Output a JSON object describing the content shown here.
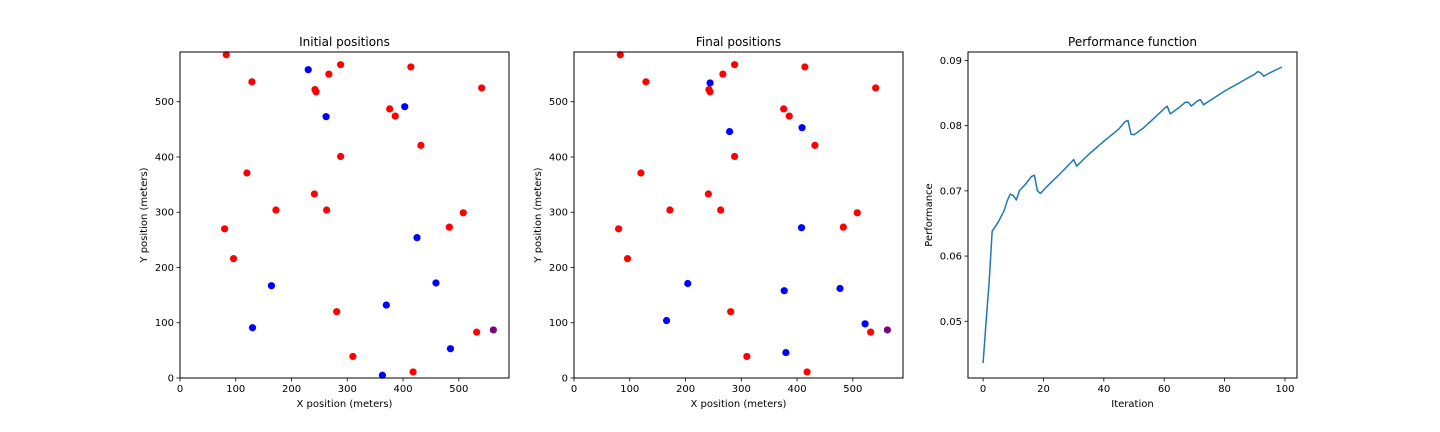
{
  "chart_data": [
    {
      "type": "scatter",
      "title": "Initial positions",
      "xlabel": "X position (meters)",
      "ylabel": "Y position (meters)",
      "xlim": [
        0,
        590
      ],
      "ylim": [
        0,
        590
      ],
      "xticks": [
        0,
        100,
        200,
        300,
        400,
        500
      ],
      "yticks": [
        0,
        100,
        200,
        300,
        400,
        500
      ],
      "grid": false,
      "series": [
        {
          "color": "#ff0000",
          "points": [
            [
              83,
              585
            ],
            [
              129,
              536
            ],
            [
              288,
              567
            ],
            [
              414,
              563
            ],
            [
              541,
              525
            ],
            [
              242,
              522
            ],
            [
              244,
              518
            ],
            [
              267,
              550
            ],
            [
              376,
              487
            ],
            [
              386,
              474
            ],
            [
              432,
              421
            ],
            [
              288,
              401
            ],
            [
              120,
              371
            ],
            [
              241,
              333
            ],
            [
              172,
              304
            ],
            [
              263,
              304
            ],
            [
              508,
              299
            ],
            [
              483,
              273
            ],
            [
              80,
              270
            ],
            [
              96,
              216
            ],
            [
              281,
              120
            ],
            [
              532,
              83
            ],
            [
              310,
              39
            ],
            [
              418,
              11
            ]
          ]
        },
        {
          "color": "#0000ff",
          "points": [
            [
              230,
              558
            ],
            [
              403,
              491
            ],
            [
              262,
              473
            ],
            [
              425,
              254
            ],
            [
              459,
              172
            ],
            [
              164,
              167
            ],
            [
              370,
              132
            ],
            [
              130,
              91
            ],
            [
              485,
              53
            ],
            [
              363,
              5
            ]
          ]
        },
        {
          "color": "#800080",
          "points": [
            [
              562,
              87
            ]
          ]
        }
      ]
    },
    {
      "type": "scatter",
      "title": "Final positions",
      "xlabel": "X position (meters)",
      "ylabel": "Y position (meters)",
      "xlim": [
        0,
        590
      ],
      "ylim": [
        0,
        590
      ],
      "xticks": [
        0,
        100,
        200,
        300,
        400,
        500
      ],
      "yticks": [
        0,
        100,
        200,
        300,
        400,
        500
      ],
      "grid": false,
      "series": [
        {
          "color": "#ff0000",
          "points": [
            [
              83,
              585
            ],
            [
              129,
              536
            ],
            [
              288,
              567
            ],
            [
              414,
              563
            ],
            [
              541,
              525
            ],
            [
              242,
              522
            ],
            [
              244,
              518
            ],
            [
              267,
              550
            ],
            [
              376,
              487
            ],
            [
              386,
              474
            ],
            [
              432,
              421
            ],
            [
              288,
              401
            ],
            [
              120,
              371
            ],
            [
              241,
              333
            ],
            [
              172,
              304
            ],
            [
              263,
              304
            ],
            [
              508,
              299
            ],
            [
              483,
              273
            ],
            [
              80,
              270
            ],
            [
              96,
              216
            ],
            [
              281,
              120
            ],
            [
              532,
              83
            ],
            [
              310,
              39
            ],
            [
              418,
              11
            ]
          ]
        },
        {
          "color": "#0000ff",
          "points": [
            [
              244,
              534
            ],
            [
              409,
              453
            ],
            [
              279,
              446
            ],
            [
              408,
              272
            ],
            [
              204,
              171
            ],
            [
              477,
              162
            ],
            [
              377,
              158
            ],
            [
              166,
              104
            ],
            [
              522,
              98
            ],
            [
              380,
              46
            ]
          ]
        },
        {
          "color": "#800080",
          "points": [
            [
              562,
              87
            ]
          ]
        }
      ]
    },
    {
      "type": "line",
      "title": "Performance function",
      "xlabel": "Iteration",
      "ylabel": "Performance",
      "xlim": [
        -5,
        104
      ],
      "ylim": [
        0.0413,
        0.0913
      ],
      "xticks": [
        0,
        20,
        40,
        60,
        80,
        100
      ],
      "yticks": [
        0.05,
        0.06,
        0.07,
        0.08,
        0.09
      ],
      "ytick_labels": [
        "0.05",
        "0.06",
        "0.07",
        "0.08",
        "0.09"
      ],
      "grid": false,
      "series": [
        {
          "color": "#1f77b4",
          "points": [
            [
              0,
              0.0436
            ],
            [
              1,
              0.05
            ],
            [
              2,
              0.056
            ],
            [
              3,
              0.0638
            ],
            [
              5,
              0.0652
            ],
            [
              7,
              0.067
            ],
            [
              8,
              0.0685
            ],
            [
              9,
              0.0695
            ],
            [
              10,
              0.0693
            ],
            [
              11,
              0.0686
            ],
            [
              12,
              0.07
            ],
            [
              14,
              0.071
            ],
            [
              16,
              0.0722
            ],
            [
              17,
              0.0724
            ],
            [
              18,
              0.07
            ],
            [
              19,
              0.0696
            ],
            [
              21,
              0.0706
            ],
            [
              25,
              0.0724
            ],
            [
              29,
              0.0743
            ],
            [
              30,
              0.0748
            ],
            [
              31,
              0.0738
            ],
            [
              35,
              0.0756
            ],
            [
              40,
              0.0776
            ],
            [
              45,
              0.0795
            ],
            [
              47,
              0.0806
            ],
            [
              48,
              0.0808
            ],
            [
              49,
              0.0787
            ],
            [
              50,
              0.0786
            ],
            [
              53,
              0.0796
            ],
            [
              57,
              0.0813
            ],
            [
              60,
              0.0826
            ],
            [
              61,
              0.083
            ],
            [
              62,
              0.0818
            ],
            [
              65,
              0.0828
            ],
            [
              67,
              0.0836
            ],
            [
              68,
              0.0836
            ],
            [
              69,
              0.083
            ],
            [
              71,
              0.0838
            ],
            [
              72,
              0.084
            ],
            [
              73,
              0.0832
            ],
            [
              75,
              0.0838
            ],
            [
              80,
              0.0853
            ],
            [
              85,
              0.0866
            ],
            [
              90,
              0.0879
            ],
            [
              91,
              0.0883
            ],
            [
              92,
              0.0881
            ],
            [
              93,
              0.0876
            ],
            [
              95,
              0.0881
            ],
            [
              99,
              0.089
            ]
          ]
        }
      ]
    }
  ]
}
